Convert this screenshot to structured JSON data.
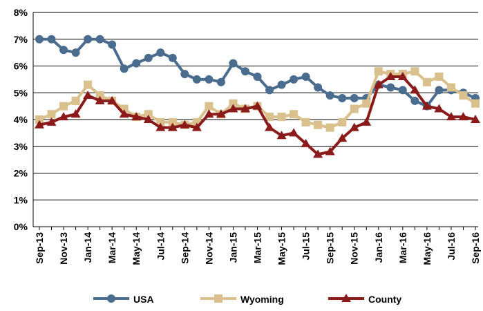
{
  "chart_data": {
    "type": "line",
    "categories": [
      "Sep-13",
      null,
      "Nov-13",
      null,
      "Jan-14",
      null,
      "Mar-14",
      null,
      "May-14",
      null,
      "Jul-14",
      null,
      "Sep-14",
      null,
      "Nov-14",
      null,
      "Jan-15",
      null,
      "Mar-15",
      null,
      "May-15",
      null,
      "Jul-15",
      null,
      "Sep-15",
      null,
      "Nov-15",
      null,
      "Jan-16",
      null,
      "Mar-16",
      null,
      "May-16",
      null,
      "Jul-16",
      null,
      "Sep-16"
    ],
    "series": [
      {
        "name": "USA",
        "color": "#4a6c8f",
        "marker": "circle",
        "values": [
          7.0,
          7.0,
          6.6,
          6.5,
          7.0,
          7.0,
          6.8,
          5.9,
          6.1,
          6.3,
          6.5,
          6.3,
          5.7,
          5.5,
          5.5,
          5.4,
          6.1,
          5.8,
          5.6,
          5.1,
          5.3,
          5.5,
          5.6,
          5.2,
          4.9,
          4.8,
          4.8,
          4.8,
          5.3,
          5.2,
          5.1,
          4.7,
          4.5,
          5.1,
          5.1,
          5.0,
          4.8
        ]
      },
      {
        "name": "Wyoming",
        "color": "#d9c08c",
        "marker": "square",
        "values": [
          4.0,
          4.2,
          4.5,
          4.7,
          5.3,
          4.9,
          4.7,
          4.4,
          4.1,
          4.2,
          3.9,
          3.9,
          3.8,
          3.9,
          4.5,
          4.2,
          4.6,
          4.4,
          4.5,
          4.1,
          4.1,
          4.2,
          3.9,
          3.8,
          3.7,
          3.9,
          4.4,
          4.6,
          5.8,
          5.7,
          5.7,
          5.8,
          5.4,
          5.6,
          5.2,
          4.9,
          4.6
        ]
      },
      {
        "name": "County",
        "color": "#8b1a1a",
        "marker": "triangle",
        "values": [
          3.8,
          3.9,
          4.1,
          4.2,
          4.9,
          4.7,
          4.7,
          4.2,
          4.1,
          4.0,
          3.7,
          3.7,
          3.8,
          3.7,
          4.2,
          4.2,
          4.4,
          4.4,
          4.5,
          3.7,
          3.4,
          3.5,
          3.1,
          2.7,
          2.8,
          3.3,
          3.7,
          3.9,
          5.3,
          5.6,
          5.6,
          5.1,
          4.5,
          4.4,
          4.1,
          4.1,
          4.0
        ]
      }
    ],
    "ylim": [
      0,
      8
    ],
    "yticks": [
      {
        "value": 0,
        "label": "0%"
      },
      {
        "value": 1,
        "label": "1%"
      },
      {
        "value": 2,
        "label": "2%"
      },
      {
        "value": 3,
        "label": "3%"
      },
      {
        "value": 4,
        "label": "4%"
      },
      {
        "value": 5,
        "label": "5%"
      },
      {
        "value": 6,
        "label": "6%"
      },
      {
        "value": 7,
        "label": "7%"
      },
      {
        "value": 8,
        "label": "8%"
      }
    ],
    "grid": true,
    "legend": "bottom"
  }
}
